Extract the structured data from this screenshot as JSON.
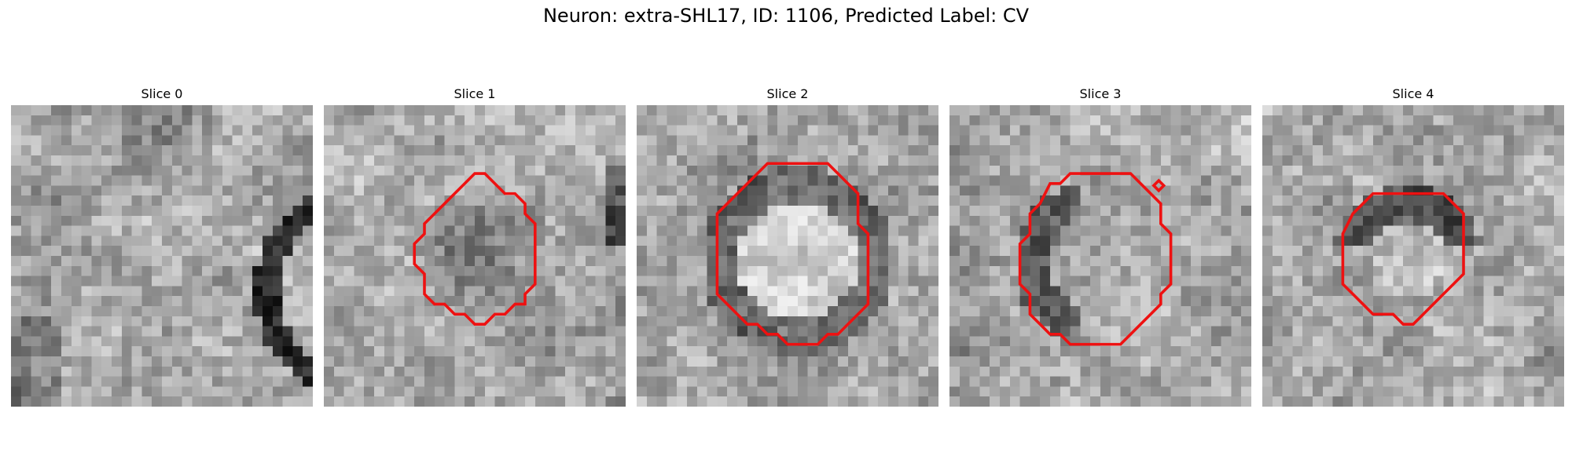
{
  "figure": {
    "title": "Neuron: extra-SHL17, ID: 1106, Predicted Label: CV",
    "contour_color": "#ee1111",
    "colormap": "gray",
    "panels": [
      {
        "title": "Slice 0",
        "has_contour": false
      },
      {
        "title": "Slice 1",
        "has_contour": true
      },
      {
        "title": "Slice 2",
        "has_contour": true
      },
      {
        "title": "Slice 3",
        "has_contour": true
      },
      {
        "title": "Slice 4",
        "has_contour": true
      }
    ]
  }
}
